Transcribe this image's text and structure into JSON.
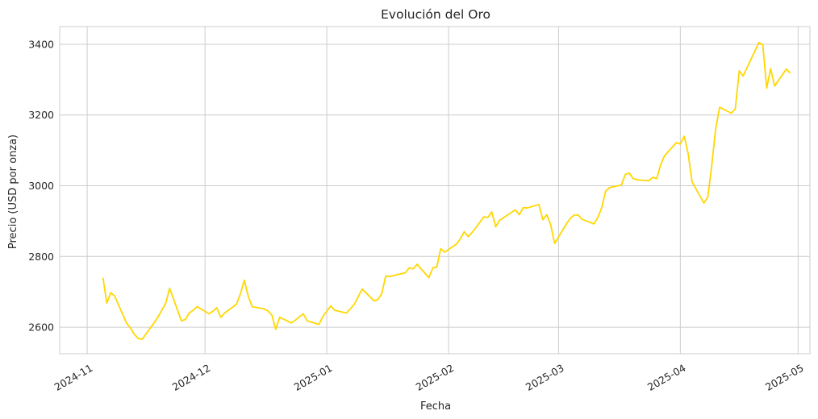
{
  "chart_data": {
    "type": "line",
    "title": "Evolución del Oro",
    "xlabel": "Fecha",
    "ylabel": "Precio (USD por onza)",
    "ylim": [
      2525,
      3450
    ],
    "xlim": [
      "2024-10-25",
      "2025-05-04"
    ],
    "grid": true,
    "x_ticks": [
      "2024-11",
      "2024-12",
      "2025-01",
      "2025-02",
      "2025-03",
      "2025-04",
      "2025-05"
    ],
    "y_ticks": [
      2600,
      2800,
      3000,
      3200,
      3400
    ],
    "colors": {
      "line": "#FFD700",
      "grid": "#cccccc",
      "spine": "#cccccc"
    },
    "series": [
      {
        "x": [
          "2024-11-05",
          "2024-11-06",
          "2024-11-07",
          "2024-11-08",
          "2024-11-11",
          "2024-11-12",
          "2024-11-13",
          "2024-11-14",
          "2024-11-15",
          "2024-11-18",
          "2024-11-19",
          "2024-11-20",
          "2024-11-21",
          "2024-11-22",
          "2024-11-25",
          "2024-11-26",
          "2024-11-27",
          "2024-11-28",
          "2024-11-29",
          "2024-12-02",
          "2024-12-03",
          "2024-12-04",
          "2024-12-05",
          "2024-12-06",
          "2024-12-09",
          "2024-12-10",
          "2024-12-11",
          "2024-12-12",
          "2024-12-13",
          "2024-12-16",
          "2024-12-17",
          "2024-12-18",
          "2024-12-19",
          "2024-12-20",
          "2024-12-23",
          "2024-12-24",
          "2024-12-26",
          "2024-12-27",
          "2024-12-30",
          "2024-12-31",
          "2025-01-02",
          "2025-01-03",
          "2025-01-06",
          "2025-01-07",
          "2025-01-08",
          "2025-01-10",
          "2025-01-13",
          "2025-01-14",
          "2025-01-15",
          "2025-01-16",
          "2025-01-17",
          "2025-01-21",
          "2025-01-22",
          "2025-01-23",
          "2025-01-24",
          "2025-01-27",
          "2025-01-28",
          "2025-01-29",
          "2025-01-30",
          "2025-01-31",
          "2025-02-03",
          "2025-02-04",
          "2025-02-05",
          "2025-02-06",
          "2025-02-07",
          "2025-02-10",
          "2025-02-11",
          "2025-02-12",
          "2025-02-13",
          "2025-02-14",
          "2025-02-18",
          "2025-02-19",
          "2025-02-20",
          "2025-02-21",
          "2025-02-24",
          "2025-02-25",
          "2025-02-26",
          "2025-02-27",
          "2025-02-28",
          "2025-03-03",
          "2025-03-04",
          "2025-03-05",
          "2025-03-06",
          "2025-03-07",
          "2025-03-10",
          "2025-03-11",
          "2025-03-12",
          "2025-03-13",
          "2025-03-14",
          "2025-03-17",
          "2025-03-18",
          "2025-03-19",
          "2025-03-20",
          "2025-03-21",
          "2025-03-24",
          "2025-03-25",
          "2025-03-26",
          "2025-03-27",
          "2025-03-28",
          "2025-03-31",
          "2025-04-01",
          "2025-04-02",
          "2025-04-03",
          "2025-04-04",
          "2025-04-07",
          "2025-04-08",
          "2025-04-09",
          "2025-04-10",
          "2025-04-11",
          "2025-04-14",
          "2025-04-15",
          "2025-04-16",
          "2025-04-17",
          "2025-04-21",
          "2025-04-22",
          "2025-04-23",
          "2025-04-24",
          "2025-04-25",
          "2025-04-28",
          "2025-04-29"
        ],
        "values": [
          2740,
          2668,
          2698,
          2688,
          2612,
          2598,
          2580,
          2568,
          2566,
          2612,
          2628,
          2648,
          2668,
          2710,
          2618,
          2622,
          2640,
          2648,
          2658,
          2638,
          2645,
          2655,
          2628,
          2640,
          2665,
          2694,
          2733,
          2688,
          2658,
          2652,
          2646,
          2635,
          2594,
          2628,
          2612,
          2620,
          2638,
          2618,
          2608,
          2630,
          2660,
          2648,
          2640,
          2652,
          2665,
          2708,
          2675,
          2678,
          2695,
          2745,
          2743,
          2754,
          2768,
          2765,
          2778,
          2740,
          2768,
          2770,
          2822,
          2812,
          2835,
          2850,
          2870,
          2856,
          2868,
          2912,
          2910,
          2926,
          2884,
          2902,
          2932,
          2918,
          2938,
          2937,
          2947,
          2904,
          2918,
          2890,
          2837,
          2892,
          2908,
          2917,
          2917,
          2905,
          2892,
          2910,
          2938,
          2985,
          2995,
          3002,
          3032,
          3036,
          3020,
          3017,
          3014,
          3024,
          3020,
          3060,
          3085,
          3122,
          3118,
          3140,
          3090,
          3011,
          2951,
          2968,
          3058,
          3160,
          3222,
          3205,
          3218,
          3325,
          3310,
          3405,
          3398,
          3276,
          3331,
          3282,
          3330,
          3318
        ]
      }
    ]
  }
}
